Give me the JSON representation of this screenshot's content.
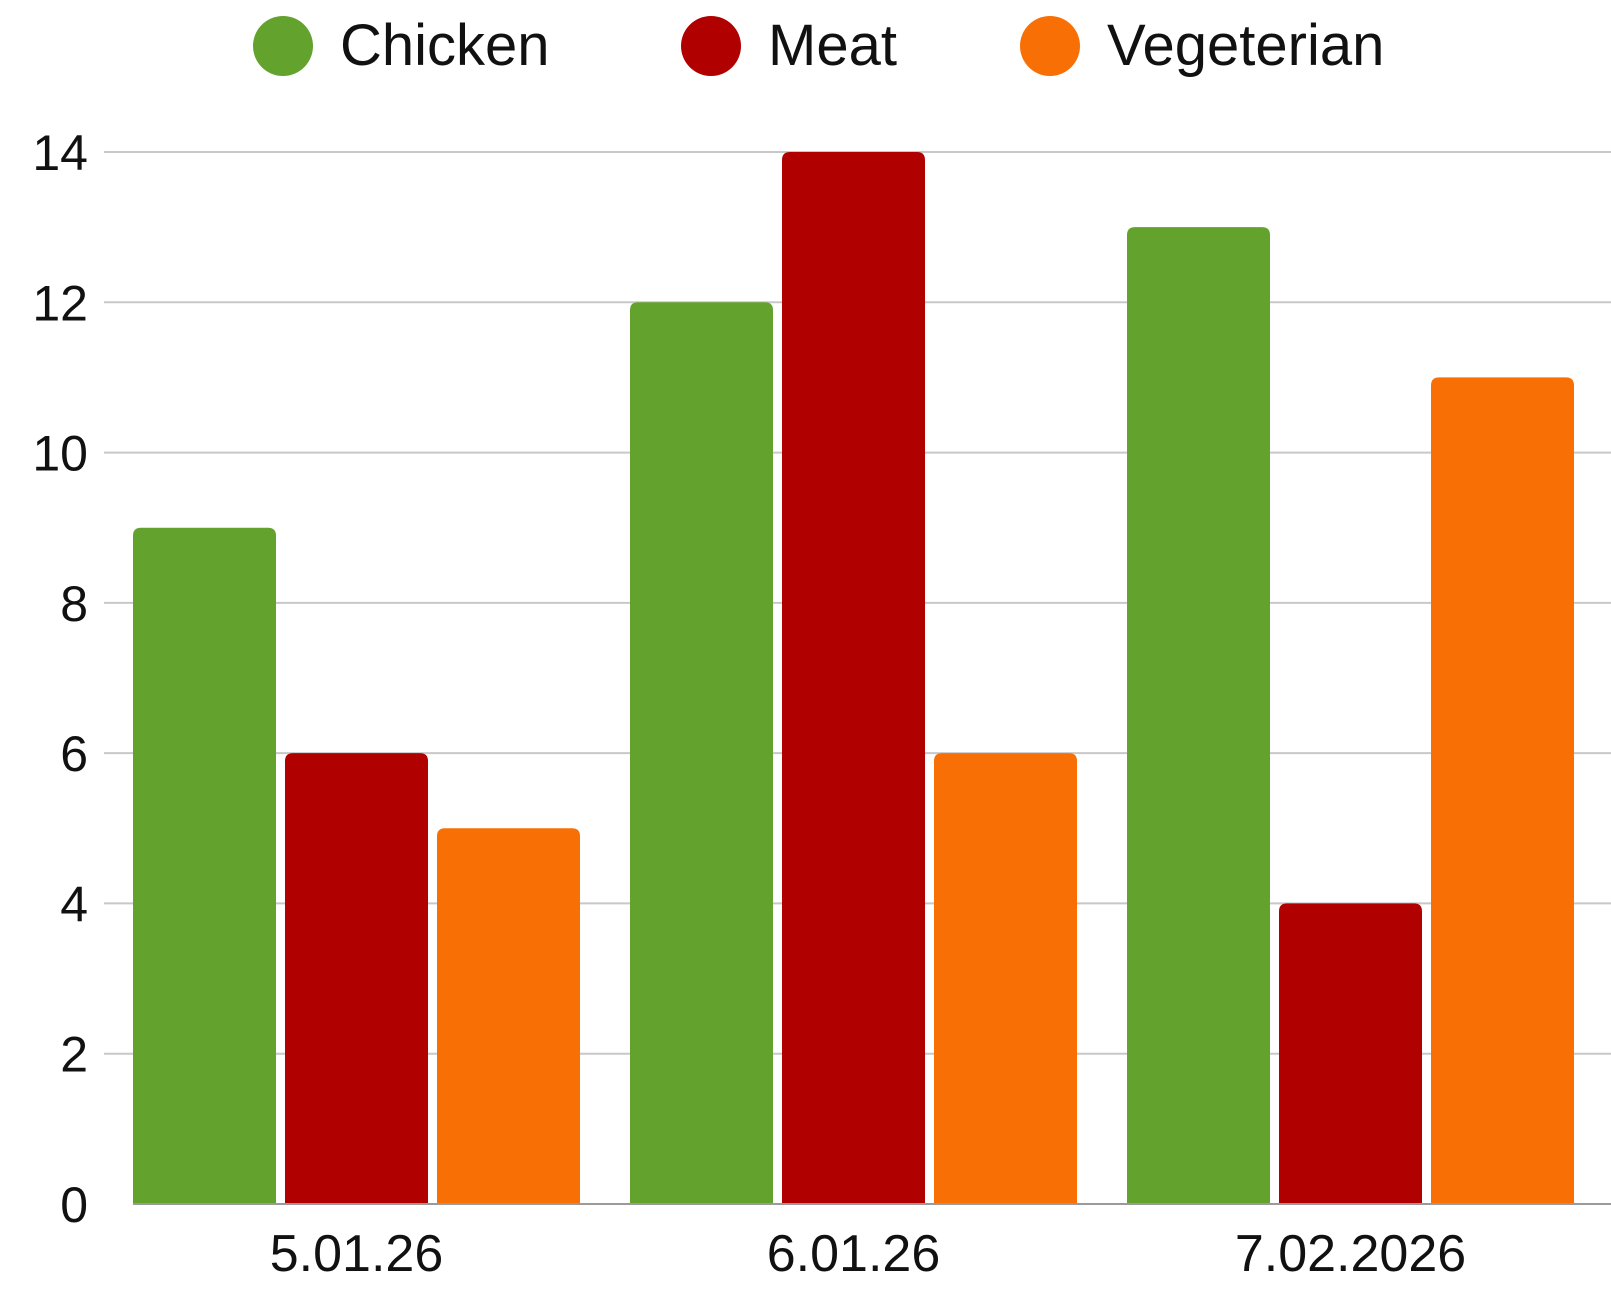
{
  "chart_data": {
    "type": "bar",
    "categories": [
      "5.01.26",
      "6.01.26",
      "7.02.2026"
    ],
    "series": [
      {
        "name": "Chicken",
        "values": [
          9,
          12,
          13
        ],
        "color": "#64a22e"
      },
      {
        "name": "Meat",
        "values": [
          6,
          14,
          4
        ],
        "color": "#b00000"
      },
      {
        "name": "Vegeterian",
        "values": [
          5,
          6,
          11
        ],
        "color": "#f87005"
      }
    ],
    "yticks": [
      "0",
      "2",
      "4",
      "6",
      "8",
      "10",
      "12",
      "14"
    ],
    "ylim": [
      0,
      14
    ],
    "grid": true,
    "legend": "top-center"
  }
}
